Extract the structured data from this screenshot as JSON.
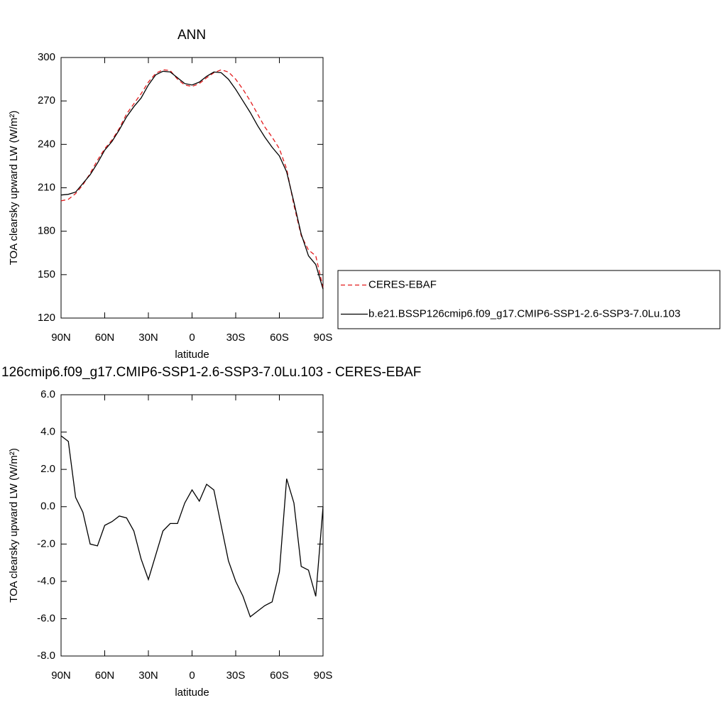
{
  "chart_data": [
    {
      "type": "line",
      "title": "ANN",
      "xlabel": "latitude",
      "ylabel": "TOA clearsky upward LW (W/m²)",
      "x": [
        90,
        85,
        80,
        75,
        70,
        65,
        60,
        55,
        50,
        45,
        40,
        35,
        30,
        25,
        20,
        15,
        10,
        5,
        0,
        -5,
        -10,
        -15,
        -20,
        -25,
        -30,
        -35,
        -40,
        -45,
        -50,
        -55,
        -60,
        -65,
        -70,
        -75,
        -80,
        -85,
        -90
      ],
      "series": [
        {
          "name": "CERES-EBAF",
          "color": "#e31a1c",
          "dash": true,
          "values": [
            201,
            202,
            206,
            212,
            220,
            229,
            237,
            243,
            251,
            261,
            268,
            275,
            283,
            289,
            291.5,
            291,
            285,
            281,
            280,
            282,
            286,
            289.5,
            291.5,
            290,
            285,
            278,
            270,
            261,
            252,
            245,
            237,
            223,
            198,
            177,
            167,
            163,
            141
          ]
        },
        {
          "name": "b.e21.BSSP126cmip6.f09_g17.CMIP6-SSP1-2.6-SSP3-7.0Lu.103",
          "color": "#000000",
          "dash": false,
          "values": [
            205,
            205.5,
            207,
            213,
            219,
            227,
            236,
            242,
            250,
            259,
            266,
            272,
            281,
            288,
            290.5,
            290,
            286,
            282,
            281,
            283,
            287,
            290,
            289.5,
            285,
            278,
            270,
            262,
            253,
            245,
            238,
            232,
            221,
            200,
            178,
            163,
            157,
            140
          ]
        }
      ],
      "xlim": [
        90,
        -90
      ],
      "xticks": [
        {
          "value": 90,
          "label": "90N"
        },
        {
          "value": 60,
          "label": "60N"
        },
        {
          "value": 30,
          "label": "30N"
        },
        0,
        {
          "value": -30,
          "label": "30S"
        },
        {
          "value": -60,
          "label": "60S"
        },
        {
          "value": -90,
          "label": "90S"
        }
      ],
      "ylim": [
        120,
        300
      ],
      "yticks": [
        120,
        150,
        180,
        210,
        240,
        270,
        300
      ],
      "legend": "right"
    },
    {
      "type": "line",
      "title": "126cmip6.f09_g17.CMIP6-SSP1-2.6-SSP3-7.0Lu.103 - CERES-EBAF",
      "xlabel": "latitude",
      "ylabel": "TOA clearsky upward LW (W/m²)",
      "x": [
        90,
        85,
        80,
        75,
        70,
        65,
        60,
        55,
        50,
        45,
        40,
        35,
        30,
        25,
        20,
        15,
        10,
        5,
        0,
        -5,
        -10,
        -15,
        -20,
        -25,
        -30,
        -35,
        -40,
        -45,
        -50,
        -55,
        -60,
        -65,
        -70,
        -75,
        -80,
        -85,
        -90
      ],
      "series": [
        {
          "color": "#000000",
          "dash": false,
          "values": [
            3.8,
            3.5,
            0.5,
            -0.3,
            -2.0,
            -2.1,
            -1.0,
            -0.8,
            -0.5,
            -0.6,
            -1.3,
            -2.8,
            -3.9,
            -2.6,
            -1.3,
            -0.9,
            -0.9,
            0.2,
            0.9,
            0.3,
            1.2,
            0.9,
            -1.0,
            -2.9,
            -4.0,
            -4.8,
            -5.9,
            -5.6,
            -5.3,
            -5.1,
            -3.5,
            1.5,
            0.2,
            -3.2,
            -3.4,
            -4.8,
            0.0
          ]
        }
      ],
      "xlim": [
        90,
        -90
      ],
      "xticks": [
        {
          "value": 90,
          "label": "90N"
        },
        {
          "value": 60,
          "label": "60N"
        },
        {
          "value": 30,
          "label": "30N"
        },
        0,
        {
          "value": -30,
          "label": "30S"
        },
        {
          "value": -60,
          "label": "60S"
        },
        {
          "value": -90,
          "label": "90S"
        }
      ],
      "ylim": [
        -8,
        6
      ],
      "yticks": [
        {
          "value": -8,
          "label": "-8.0"
        },
        {
          "value": -6,
          "label": "-6.0"
        },
        {
          "value": -4,
          "label": "-4.0"
        },
        {
          "value": -2,
          "label": "-2.0"
        },
        {
          "value": 0,
          "label": "0.0"
        },
        {
          "value": 2,
          "label": "2.0"
        },
        {
          "value": 4,
          "label": "4.0"
        },
        {
          "value": 6,
          "label": "6.0"
        }
      ]
    }
  ]
}
